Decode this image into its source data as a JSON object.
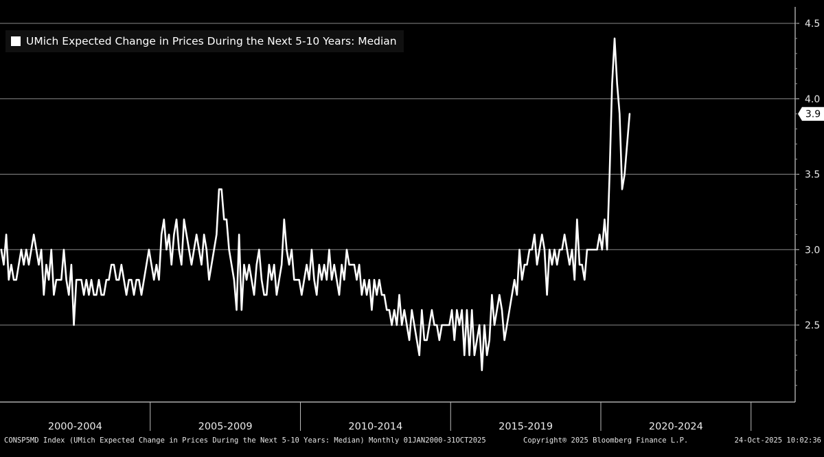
{
  "chart_data": {
    "type": "line",
    "title": "UMich Expected Change in Prices During the Next 5-10 Years: Median",
    "legend_position": "top-left",
    "ylim": [
      2.0,
      4.5
    ],
    "yticks": [
      2.5,
      3.0,
      3.5,
      4.0,
      4.5
    ],
    "ytick_labels": [
      "2.5",
      "3.0",
      "3.5",
      "4.0",
      "4.5"
    ],
    "grid": true,
    "x_start": "2000-01",
    "x_end": "2025-10",
    "x_period_labels": [
      "2000-2004",
      "2005-2009",
      "2010-2014",
      "2015-2019",
      "2020-2024"
    ],
    "last_value_label": "3.9",
    "series": [
      {
        "name": "UMich Expected Change in Prices During the Next 5-10 Years: Median",
        "color": "#ffffff",
        "values": [
          3.0,
          2.9,
          3.1,
          2.8,
          2.9,
          2.8,
          2.8,
          2.9,
          3.0,
          2.9,
          3.0,
          2.9,
          3.0,
          3.1,
          3.0,
          2.9,
          3.0,
          2.7,
          2.9,
          2.8,
          3.0,
          2.7,
          2.8,
          2.8,
          2.8,
          3.0,
          2.8,
          2.7,
          2.9,
          2.5,
          2.8,
          2.8,
          2.8,
          2.7,
          2.8,
          2.7,
          2.8,
          2.7,
          2.7,
          2.8,
          2.7,
          2.7,
          2.8,
          2.8,
          2.9,
          2.9,
          2.8,
          2.8,
          2.9,
          2.8,
          2.7,
          2.8,
          2.8,
          2.7,
          2.8,
          2.8,
          2.7,
          2.8,
          2.9,
          3.0,
          2.9,
          2.8,
          2.9,
          2.8,
          3.1,
          3.2,
          3.0,
          3.1,
          2.9,
          3.1,
          3.2,
          3.0,
          2.9,
          3.2,
          3.1,
          3.0,
          2.9,
          3.0,
          3.1,
          3.0,
          2.9,
          3.1,
          3.0,
          2.8,
          2.9,
          3.0,
          3.1,
          3.4,
          3.4,
          3.2,
          3.2,
          3.0,
          2.9,
          2.8,
          2.6,
          3.1,
          2.6,
          2.9,
          2.8,
          2.9,
          2.8,
          2.7,
          2.9,
          3.0,
          2.8,
          2.7,
          2.7,
          2.9,
          2.8,
          2.9,
          2.7,
          2.8,
          2.9,
          3.2,
          3.0,
          2.9,
          3.0,
          2.8,
          2.8,
          2.8,
          2.7,
          2.8,
          2.9,
          2.8,
          3.0,
          2.8,
          2.7,
          2.9,
          2.8,
          2.9,
          2.8,
          3.0,
          2.8,
          2.9,
          2.8,
          2.7,
          2.9,
          2.8,
          3.0,
          2.9,
          2.9,
          2.9,
          2.8,
          2.9,
          2.7,
          2.8,
          2.7,
          2.8,
          2.6,
          2.8,
          2.7,
          2.8,
          2.7,
          2.7,
          2.6,
          2.6,
          2.5,
          2.6,
          2.5,
          2.7,
          2.5,
          2.6,
          2.5,
          2.4,
          2.6,
          2.5,
          2.4,
          2.3,
          2.6,
          2.4,
          2.4,
          2.5,
          2.6,
          2.5,
          2.5,
          2.4,
          2.5,
          2.5,
          2.5,
          2.5,
          2.6,
          2.4,
          2.6,
          2.5,
          2.6,
          2.3,
          2.6,
          2.3,
          2.6,
          2.3,
          2.4,
          2.5,
          2.2,
          2.5,
          2.3,
          2.4,
          2.7,
          2.5,
          2.6,
          2.7,
          2.6,
          2.4,
          2.5,
          2.6,
          2.7,
          2.8,
          2.7,
          3.0,
          2.8,
          2.9,
          2.9,
          3.0,
          3.0,
          3.1,
          2.9,
          3.0,
          3.1,
          3.0,
          2.7,
          3.0,
          2.9,
          3.0,
          2.9,
          3.0,
          3.0,
          3.1,
          3.0,
          2.9,
          3.0,
          2.8,
          3.2,
          2.9,
          2.9,
          2.8,
          3.0,
          3.0,
          3.0,
          3.0,
          3.0,
          3.1,
          3.0,
          3.2,
          3.0,
          3.5,
          4.1,
          4.4,
          4.1,
          3.9,
          3.4,
          3.5,
          3.7,
          3.9
        ]
      }
    ]
  },
  "footer": {
    "source": "CONSP5MD Index (UMich Expected Change in Prices During the Next 5-10 Years: Median) Monthly 01JAN2000-31OCT2025",
    "copyright": "Copyright® 2025 Bloomberg Finance L.P.",
    "timestamp": "24-Oct-2025 10:02:36"
  }
}
